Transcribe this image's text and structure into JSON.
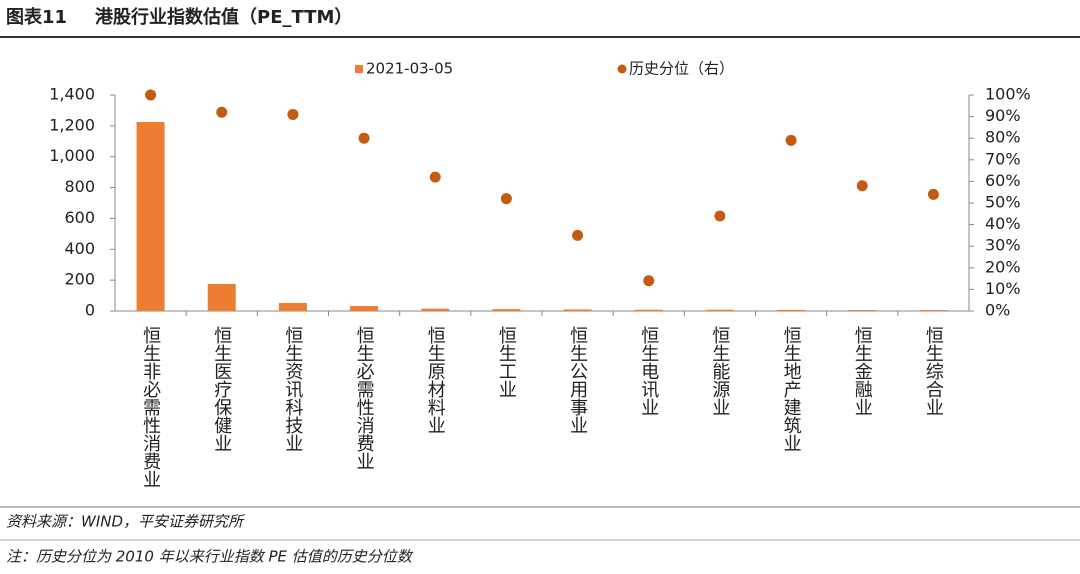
{
  "chart_data": {
    "type": "bar",
    "figure_label": "图表11",
    "title": "港股行业指数估值（PE_TTM）",
    "categories": [
      "恒生非必需性消费业",
      "恒生医疗保健业",
      "恒生资讯科技业",
      "恒生必需性消费业",
      "恒生原材料业",
      "恒生工业",
      "恒生公用事业",
      "恒生电讯业",
      "恒生能源业",
      "恒生地产建筑业",
      "恒生金融业",
      "恒生综合业"
    ],
    "series": [
      {
        "name": "2021-03-05",
        "type": "bar",
        "color": "#ED7D31",
        "values": [
          1225,
          175,
          52,
          32,
          15,
          12,
          10,
          8,
          8,
          7,
          6,
          6
        ]
      },
      {
        "name": "历史分位（右）",
        "type": "scatter",
        "axis": "y2",
        "color": "#C55A11",
        "values": [
          100,
          92,
          91,
          80,
          62,
          52,
          35,
          14,
          44,
          79,
          58,
          54
        ]
      }
    ],
    "ylim": [
      0,
      1400
    ],
    "yticks": [
      0,
      200,
      400,
      600,
      800,
      {
        "value": 1000,
        "label": "1,000"
      },
      {
        "value": 1200,
        "label": "1,200"
      },
      {
        "value": 1400,
        "label": "1,400"
      }
    ],
    "y2lim": [
      0,
      100
    ],
    "y2ticks": [
      {
        "value": 0,
        "label": "0%"
      },
      {
        "value": 10,
        "label": "10%"
      },
      {
        "value": 20,
        "label": "20%"
      },
      {
        "value": 30,
        "label": "30%"
      },
      {
        "value": 40,
        "label": "40%"
      },
      {
        "value": 50,
        "label": "50%"
      },
      {
        "value": 60,
        "label": "60%"
      },
      {
        "value": 70,
        "label": "70%"
      },
      {
        "value": 80,
        "label": "80%"
      },
      {
        "value": 90,
        "label": "90%"
      },
      {
        "value": 100,
        "label": "100%"
      }
    ],
    "grid": false,
    "legend": "top",
    "source": "资料来源：WIND，平安证券研究所",
    "note": "注：历史分位为 2010 年以来行业指数 PE 估值的历史分位数"
  }
}
